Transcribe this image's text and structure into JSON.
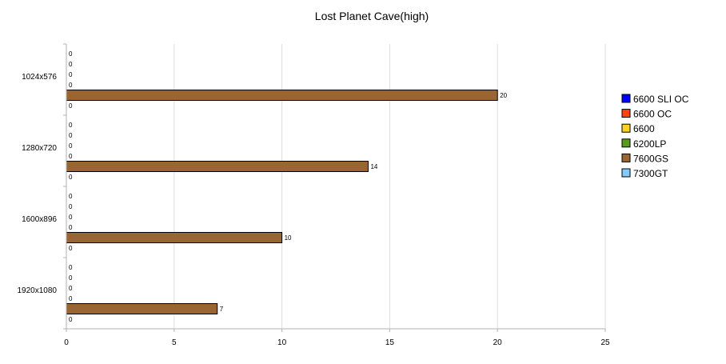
{
  "chart_data": {
    "type": "bar",
    "orientation": "horizontal",
    "title": "Lost Planet Cave(high)",
    "xlabel": "",
    "ylabel": "",
    "xlim": [
      0,
      25
    ],
    "x_ticks": [
      "0",
      "5",
      "10",
      "15",
      "20",
      "25"
    ],
    "categories": [
      "1024x576",
      "1280x720",
      "1600x896",
      "1920x1080"
    ],
    "series": [
      {
        "name": "6600 SLI OC",
        "color": "#0000ff",
        "values": [
          0,
          0,
          0,
          0
        ]
      },
      {
        "name": "6600 OC",
        "color": "#ff420e",
        "values": [
          0,
          0,
          0,
          0
        ]
      },
      {
        "name": "6600",
        "color": "#ffd320",
        "values": [
          0,
          0,
          0,
          0
        ]
      },
      {
        "name": "6200LP",
        "color": "#579d1c",
        "values": [
          0,
          0,
          0,
          0
        ]
      },
      {
        "name": "7600GS",
        "color": "#996633",
        "values": [
          20,
          14,
          10,
          7
        ]
      },
      {
        "name": "7300GT",
        "color": "#83caff",
        "values": [
          0,
          0,
          0,
          0
        ]
      }
    ],
    "grid": true,
    "legend_position": "right"
  }
}
